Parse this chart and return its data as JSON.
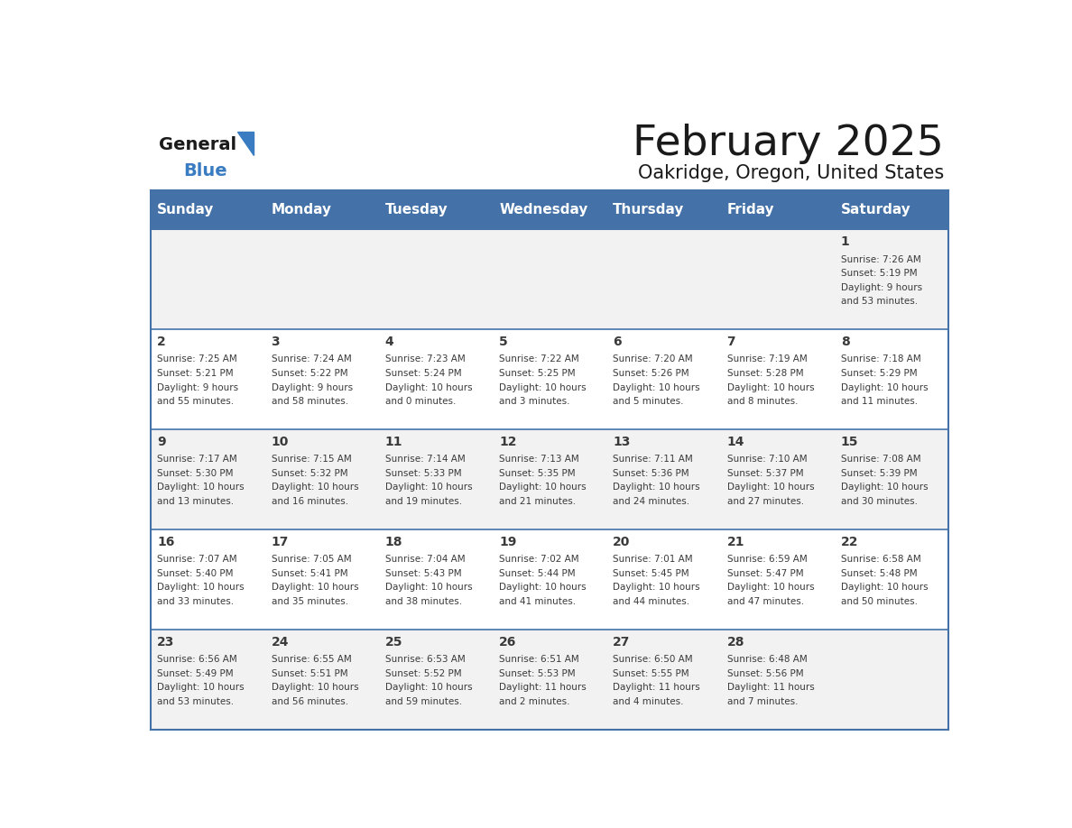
{
  "title": "February 2025",
  "subtitle": "Oakridge, Oregon, United States",
  "days_of_week": [
    "Sunday",
    "Monday",
    "Tuesday",
    "Wednesday",
    "Thursday",
    "Friday",
    "Saturday"
  ],
  "header_bg": "#4472A8",
  "header_text": "#FFFFFF",
  "row_bg_odd": "#F2F2F2",
  "row_bg_even": "#FFFFFF",
  "border_color": "#4472A8",
  "day_number_color": "#3A3A3A",
  "info_text_color": "#3A3A3A",
  "title_color": "#1A1A1A",
  "subtitle_color": "#1A1A1A",
  "logo_general_color": "#1A1A1A",
  "logo_blue_color": "#3A7CC2",
  "calendar_data": [
    {
      "day": 1,
      "col": 6,
      "row": 0,
      "sunrise": "7:26 AM",
      "sunset": "5:19 PM",
      "daylight_hours": 9,
      "daylight_minutes": 53
    },
    {
      "day": 2,
      "col": 0,
      "row": 1,
      "sunrise": "7:25 AM",
      "sunset": "5:21 PM",
      "daylight_hours": 9,
      "daylight_minutes": 55
    },
    {
      "day": 3,
      "col": 1,
      "row": 1,
      "sunrise": "7:24 AM",
      "sunset": "5:22 PM",
      "daylight_hours": 9,
      "daylight_minutes": 58
    },
    {
      "day": 4,
      "col": 2,
      "row": 1,
      "sunrise": "7:23 AM",
      "sunset": "5:24 PM",
      "daylight_hours": 10,
      "daylight_minutes": 0
    },
    {
      "day": 5,
      "col": 3,
      "row": 1,
      "sunrise": "7:22 AM",
      "sunset": "5:25 PM",
      "daylight_hours": 10,
      "daylight_minutes": 3
    },
    {
      "day": 6,
      "col": 4,
      "row": 1,
      "sunrise": "7:20 AM",
      "sunset": "5:26 PM",
      "daylight_hours": 10,
      "daylight_minutes": 5
    },
    {
      "day": 7,
      "col": 5,
      "row": 1,
      "sunrise": "7:19 AM",
      "sunset": "5:28 PM",
      "daylight_hours": 10,
      "daylight_minutes": 8
    },
    {
      "day": 8,
      "col": 6,
      "row": 1,
      "sunrise": "7:18 AM",
      "sunset": "5:29 PM",
      "daylight_hours": 10,
      "daylight_minutes": 11
    },
    {
      "day": 9,
      "col": 0,
      "row": 2,
      "sunrise": "7:17 AM",
      "sunset": "5:30 PM",
      "daylight_hours": 10,
      "daylight_minutes": 13
    },
    {
      "day": 10,
      "col": 1,
      "row": 2,
      "sunrise": "7:15 AM",
      "sunset": "5:32 PM",
      "daylight_hours": 10,
      "daylight_minutes": 16
    },
    {
      "day": 11,
      "col": 2,
      "row": 2,
      "sunrise": "7:14 AM",
      "sunset": "5:33 PM",
      "daylight_hours": 10,
      "daylight_minutes": 19
    },
    {
      "day": 12,
      "col": 3,
      "row": 2,
      "sunrise": "7:13 AM",
      "sunset": "5:35 PM",
      "daylight_hours": 10,
      "daylight_minutes": 21
    },
    {
      "day": 13,
      "col": 4,
      "row": 2,
      "sunrise": "7:11 AM",
      "sunset": "5:36 PM",
      "daylight_hours": 10,
      "daylight_minutes": 24
    },
    {
      "day": 14,
      "col": 5,
      "row": 2,
      "sunrise": "7:10 AM",
      "sunset": "5:37 PM",
      "daylight_hours": 10,
      "daylight_minutes": 27
    },
    {
      "day": 15,
      "col": 6,
      "row": 2,
      "sunrise": "7:08 AM",
      "sunset": "5:39 PM",
      "daylight_hours": 10,
      "daylight_minutes": 30
    },
    {
      "day": 16,
      "col": 0,
      "row": 3,
      "sunrise": "7:07 AM",
      "sunset": "5:40 PM",
      "daylight_hours": 10,
      "daylight_minutes": 33
    },
    {
      "day": 17,
      "col": 1,
      "row": 3,
      "sunrise": "7:05 AM",
      "sunset": "5:41 PM",
      "daylight_hours": 10,
      "daylight_minutes": 35
    },
    {
      "day": 18,
      "col": 2,
      "row": 3,
      "sunrise": "7:04 AM",
      "sunset": "5:43 PM",
      "daylight_hours": 10,
      "daylight_minutes": 38
    },
    {
      "day": 19,
      "col": 3,
      "row": 3,
      "sunrise": "7:02 AM",
      "sunset": "5:44 PM",
      "daylight_hours": 10,
      "daylight_minutes": 41
    },
    {
      "day": 20,
      "col": 4,
      "row": 3,
      "sunrise": "7:01 AM",
      "sunset": "5:45 PM",
      "daylight_hours": 10,
      "daylight_minutes": 44
    },
    {
      "day": 21,
      "col": 5,
      "row": 3,
      "sunrise": "6:59 AM",
      "sunset": "5:47 PM",
      "daylight_hours": 10,
      "daylight_minutes": 47
    },
    {
      "day": 22,
      "col": 6,
      "row": 3,
      "sunrise": "6:58 AM",
      "sunset": "5:48 PM",
      "daylight_hours": 10,
      "daylight_minutes": 50
    },
    {
      "day": 23,
      "col": 0,
      "row": 4,
      "sunrise": "6:56 AM",
      "sunset": "5:49 PM",
      "daylight_hours": 10,
      "daylight_minutes": 53
    },
    {
      "day": 24,
      "col": 1,
      "row": 4,
      "sunrise": "6:55 AM",
      "sunset": "5:51 PM",
      "daylight_hours": 10,
      "daylight_minutes": 56
    },
    {
      "day": 25,
      "col": 2,
      "row": 4,
      "sunrise": "6:53 AM",
      "sunset": "5:52 PM",
      "daylight_hours": 10,
      "daylight_minutes": 59
    },
    {
      "day": 26,
      "col": 3,
      "row": 4,
      "sunrise": "6:51 AM",
      "sunset": "5:53 PM",
      "daylight_hours": 11,
      "daylight_minutes": 2
    },
    {
      "day": 27,
      "col": 4,
      "row": 4,
      "sunrise": "6:50 AM",
      "sunset": "5:55 PM",
      "daylight_hours": 11,
      "daylight_minutes": 4
    },
    {
      "day": 28,
      "col": 5,
      "row": 4,
      "sunrise": "6:48 AM",
      "sunset": "5:56 PM",
      "daylight_hours": 11,
      "daylight_minutes": 7
    }
  ]
}
